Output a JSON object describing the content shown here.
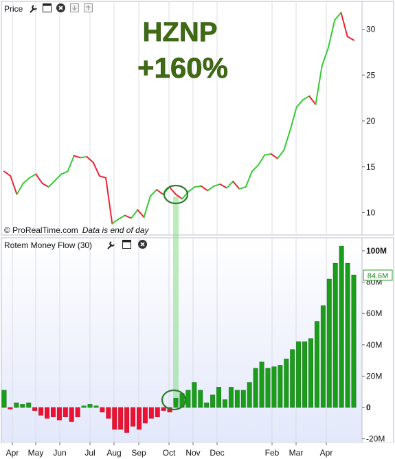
{
  "price_panel": {
    "title": "Price",
    "copyright": "© ProRealTime.com",
    "note": "Data is end of day",
    "annotation_symbol": "HZNP",
    "annotation_change": "+160%"
  },
  "flow_panel": {
    "title": "Rotem Money Flow (30)",
    "last_value_label": "84.6M"
  },
  "toolbar_icons": [
    "wrench-icon",
    "window-icon",
    "close-icon",
    "move-down-icon",
    "move-up-icon"
  ],
  "colors": {
    "up": "#33cc33",
    "down": "#ee2233",
    "bar_up": "#1a9e1a",
    "bar_down": "#ee1133",
    "highlight": "#8fe08f",
    "annotation_text": "#3f6b12",
    "circle": "#2d7a2d"
  },
  "chart_data": [
    {
      "type": "line",
      "title": "Price",
      "x_tick_labels": [
        "Apr",
        "May",
        "Jun",
        "Jul",
        "Aug",
        "Sep",
        "Oct",
        "Nov",
        "Dec",
        "Feb",
        "Mar",
        "Apr"
      ],
      "y_tick_labels": [
        "10",
        "15",
        "20",
        "25",
        "30"
      ],
      "ylim": [
        7.5,
        32.5
      ],
      "grid": true,
      "series": [
        {
          "values": [
            14.5,
            14.0,
            12.0,
            13.2,
            13.8,
            14.2,
            13.2,
            12.8,
            13.5,
            14.2,
            14.5,
            16.2,
            16.0,
            16.1,
            15.5,
            14.0,
            13.8,
            8.8,
            9.3,
            9.7,
            9.4,
            10.3,
            9.5,
            11.8,
            12.5,
            12.0,
            12.8,
            12.0,
            11.5,
            12.3,
            12.8,
            12.9,
            12.4,
            12.9,
            13.1,
            12.7,
            13.4,
            12.6,
            12.8,
            14.5,
            15.2,
            16.3,
            16.4,
            15.9,
            16.8,
            19.0,
            21.5,
            22.3,
            22.7,
            21.8,
            26.0,
            28.0,
            31.0,
            31.8,
            29.2,
            28.8
          ]
        }
      ],
      "highlight_index": 28
    },
    {
      "type": "bar",
      "title": "Rotem Money Flow (30)",
      "x_tick_labels": [
        "Apr",
        "May",
        "Jun",
        "Jul",
        "Aug",
        "Sep",
        "Oct",
        "Nov",
        "Dec",
        "Feb",
        "Mar",
        "Apr"
      ],
      "y_tick_labels": [
        "100M",
        "80M",
        "60M",
        "40M",
        "20M",
        "0",
        "-20M"
      ],
      "ylim": [
        -22,
        108
      ],
      "grid": true,
      "last_value": 84.6,
      "series": [
        {
          "values": [
            11,
            -1,
            3,
            2,
            3,
            -2,
            -5,
            -7,
            -6,
            -8,
            -6,
            -9,
            -6,
            1,
            2,
            1,
            -3,
            -7,
            -14,
            -14,
            -16,
            -12,
            -14,
            -10,
            -7,
            -6,
            -2,
            -3,
            6,
            9,
            11,
            16,
            11,
            3,
            8,
            13,
            5,
            13,
            11,
            11,
            16,
            25,
            29,
            25,
            26,
            27,
            31,
            37,
            42,
            42,
            44,
            55,
            65,
            82,
            92,
            103,
            92,
            84.6
          ]
        }
      ]
    }
  ]
}
